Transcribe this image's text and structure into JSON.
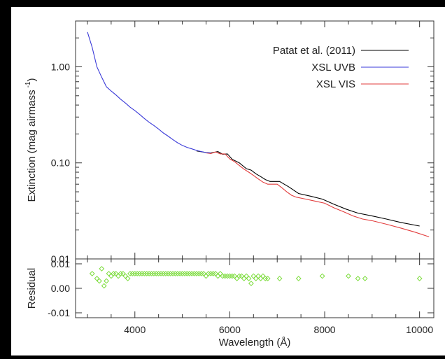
{
  "chart_data": [
    {
      "type": "line",
      "panel": "extinction",
      "ylabel_main": "Extinction (mag airmass",
      "ylabel_sup": "-1",
      "ylabel_close": ")",
      "y_scale": "log",
      "ylim": [
        0.01,
        3.0
      ],
      "xlim": [
        2750,
        10300
      ],
      "y_ticks": [
        0.01,
        0.1,
        1.0
      ],
      "y_tick_labels": [
        "0.01",
        "0.10",
        "1.00"
      ],
      "legend_position": "top-right",
      "series": [
        {
          "name": "Patat et al. (2011)",
          "color": "#000000",
          "x": [
            5300,
            5500,
            5600,
            5750,
            5850,
            5950,
            6050,
            6200,
            6350,
            6450,
            6550,
            6650,
            6750,
            6850,
            7050,
            7250,
            7450,
            7700,
            7950,
            8200,
            8450,
            8700,
            9000,
            9300,
            9600,
            10000
          ],
          "y": [
            0.133,
            0.128,
            0.127,
            0.131,
            0.123,
            0.124,
            0.109,
            0.1,
            0.087,
            0.084,
            0.077,
            0.072,
            0.067,
            0.064,
            0.064,
            0.056,
            0.048,
            0.045,
            0.042,
            0.037,
            0.033,
            0.03,
            0.028,
            0.026,
            0.024,
            0.022
          ]
        },
        {
          "name": "XSL UVB",
          "color": "#3a3ad8",
          "x": [
            3000,
            3100,
            3200,
            3300,
            3400,
            3500,
            3600,
            3700,
            3800,
            3900,
            4000,
            4100,
            4200,
            4300,
            4400,
            4500,
            4600,
            4700,
            4800,
            4900,
            5000,
            5100,
            5200,
            5300,
            5400,
            5500,
            5600
          ],
          "y": [
            2.3,
            1.6,
            1.0,
            0.78,
            0.62,
            0.56,
            0.51,
            0.46,
            0.42,
            0.38,
            0.35,
            0.32,
            0.29,
            0.265,
            0.245,
            0.225,
            0.205,
            0.19,
            0.175,
            0.162,
            0.152,
            0.145,
            0.14,
            0.135,
            0.131,
            0.128,
            0.127
          ]
        },
        {
          "name": "XSL VIS",
          "color": "#e23c3c",
          "x": [
            5500,
            5600,
            5700,
            5800,
            5900,
            6000,
            6100,
            6200,
            6300,
            6400,
            6500,
            6600,
            6700,
            6800,
            6900,
            7000,
            7100,
            7200,
            7300,
            7400,
            7600,
            7800,
            8000,
            8200,
            8400,
            8600,
            8800,
            9000,
            9300,
            9600,
            9900,
            10200
          ],
          "y": [
            0.127,
            0.125,
            0.13,
            0.124,
            0.124,
            0.11,
            0.103,
            0.094,
            0.086,
            0.08,
            0.074,
            0.068,
            0.063,
            0.06,
            0.06,
            0.06,
            0.055,
            0.05,
            0.046,
            0.044,
            0.042,
            0.04,
            0.038,
            0.034,
            0.031,
            0.028,
            0.026,
            0.025,
            0.023,
            0.021,
            0.019,
            0.017
          ]
        }
      ]
    },
    {
      "type": "scatter",
      "panel": "residual",
      "xlabel": "Wavelength (Å)",
      "ylabel": "Residual",
      "xlim": [
        2750,
        10300
      ],
      "ylim": [
        -0.012,
        0.012
      ],
      "x_ticks": [
        4000,
        6000,
        8000,
        10000
      ],
      "x_tick_labels": [
        "4000",
        "6000",
        "8000",
        "10000"
      ],
      "y_ticks": [
        -0.01,
        0.0,
        0.01
      ],
      "y_tick_labels": [
        "-0.01",
        "0.00",
        "0.01"
      ],
      "marker": "diamond",
      "color": "#7cdc3c",
      "x": [
        3100,
        3200,
        3250,
        3300,
        3350,
        3400,
        3450,
        3500,
        3550,
        3600,
        3650,
        3700,
        3750,
        3800,
        3850,
        3900,
        3950,
        4000,
        4050,
        4100,
        4150,
        4200,
        4250,
        4300,
        4350,
        4400,
        4450,
        4500,
        4550,
        4600,
        4650,
        4700,
        4750,
        4800,
        4850,
        4900,
        4950,
        5000,
        5050,
        5100,
        5150,
        5200,
        5250,
        5300,
        5350,
        5400,
        5450,
        5500,
        5550,
        5600,
        5650,
        5700,
        5750,
        5800,
        5850,
        5900,
        5950,
        6000,
        6050,
        6100,
        6150,
        6200,
        6250,
        6300,
        6350,
        6400,
        6450,
        6500,
        6550,
        6600,
        6650,
        6700,
        6750,
        6800,
        7050,
        7450,
        7950,
        8500,
        8700,
        8850,
        10000
      ],
      "y": [
        0.006,
        0.004,
        0.003,
        0.008,
        0.001,
        0.003,
        0.006,
        0.005,
        0.006,
        0.006,
        0.005,
        0.006,
        0.006,
        0.005,
        0.004,
        0.006,
        0.006,
        0.006,
        0.006,
        0.006,
        0.006,
        0.006,
        0.006,
        0.006,
        0.006,
        0.006,
        0.006,
        0.006,
        0.006,
        0.006,
        0.006,
        0.006,
        0.006,
        0.006,
        0.006,
        0.006,
        0.006,
        0.006,
        0.006,
        0.006,
        0.006,
        0.006,
        0.006,
        0.006,
        0.006,
        0.006,
        0.006,
        0.005,
        0.006,
        0.006,
        0.006,
        0.006,
        0.005,
        0.006,
        0.005,
        0.005,
        0.005,
        0.005,
        0.005,
        0.005,
        0.004,
        0.005,
        0.005,
        0.004,
        0.005,
        0.004,
        0.002,
        0.005,
        0.004,
        0.005,
        0.004,
        0.005,
        0.004,
        0.004,
        0.004,
        0.004,
        0.005,
        0.005,
        0.004,
        0.004,
        0.004
      ]
    }
  ]
}
